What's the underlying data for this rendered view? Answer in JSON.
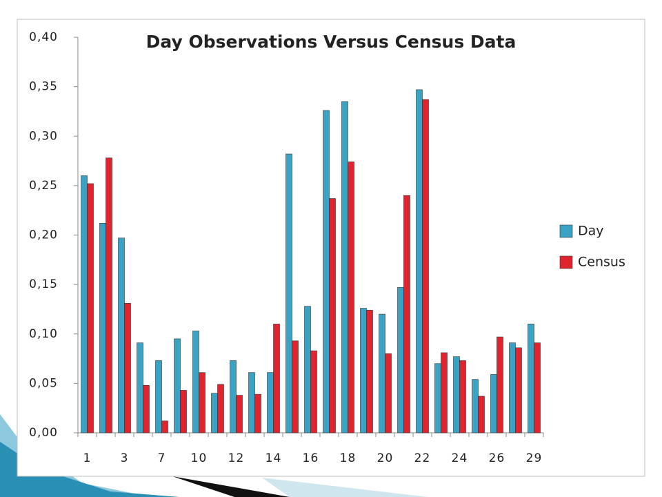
{
  "chart_data": {
    "type": "bar",
    "title": "Day Observations Versus Census Data",
    "categories": [
      "1",
      null,
      "3",
      null,
      "7",
      null,
      "10",
      null,
      "12",
      null,
      "14",
      null,
      "16",
      null,
      "18",
      null,
      "20",
      null,
      "22",
      null,
      "24",
      null,
      "26",
      null,
      "29"
    ],
    "series": [
      {
        "name": "Day",
        "color": "#3aa3c4",
        "values": [
          0.26,
          0.212,
          0.197,
          0.091,
          0.073,
          0.095,
          0.103,
          0.04,
          0.073,
          0.061,
          0.061,
          0.282,
          0.128,
          0.326,
          0.335,
          0.126,
          0.12,
          0.147,
          0.347,
          0.07,
          0.077,
          0.054,
          0.059,
          0.091,
          0.11
        ]
      },
      {
        "name": "Census",
        "color": "#e0242e",
        "values": [
          0.252,
          0.278,
          0.131,
          0.048,
          0.012,
          0.043,
          0.061,
          0.049,
          0.038,
          0.039,
          0.11,
          0.093,
          0.083,
          0.237,
          0.274,
          0.124,
          0.08,
          0.24,
          0.337,
          0.081,
          0.073,
          0.037,
          0.097,
          0.086,
          0.091
        ]
      }
    ],
    "ylim": [
      0,
      0.4
    ],
    "yticks": [
      {
        "value": 0,
        "label": "0,00"
      },
      {
        "value": 0.05,
        "label": "0,05"
      },
      {
        "value": 0.1,
        "label": "0,10"
      },
      {
        "value": 0.15,
        "label": "0,15"
      },
      {
        "value": 0.2,
        "label": "0,20"
      },
      {
        "value": 0.25,
        "label": "0,25"
      },
      {
        "value": 0.3,
        "label": "0,30"
      },
      {
        "value": 0.35,
        "label": "0,35"
      },
      {
        "value": 0.4,
        "label": "0,40"
      }
    ],
    "grid": false,
    "legend": "right"
  }
}
